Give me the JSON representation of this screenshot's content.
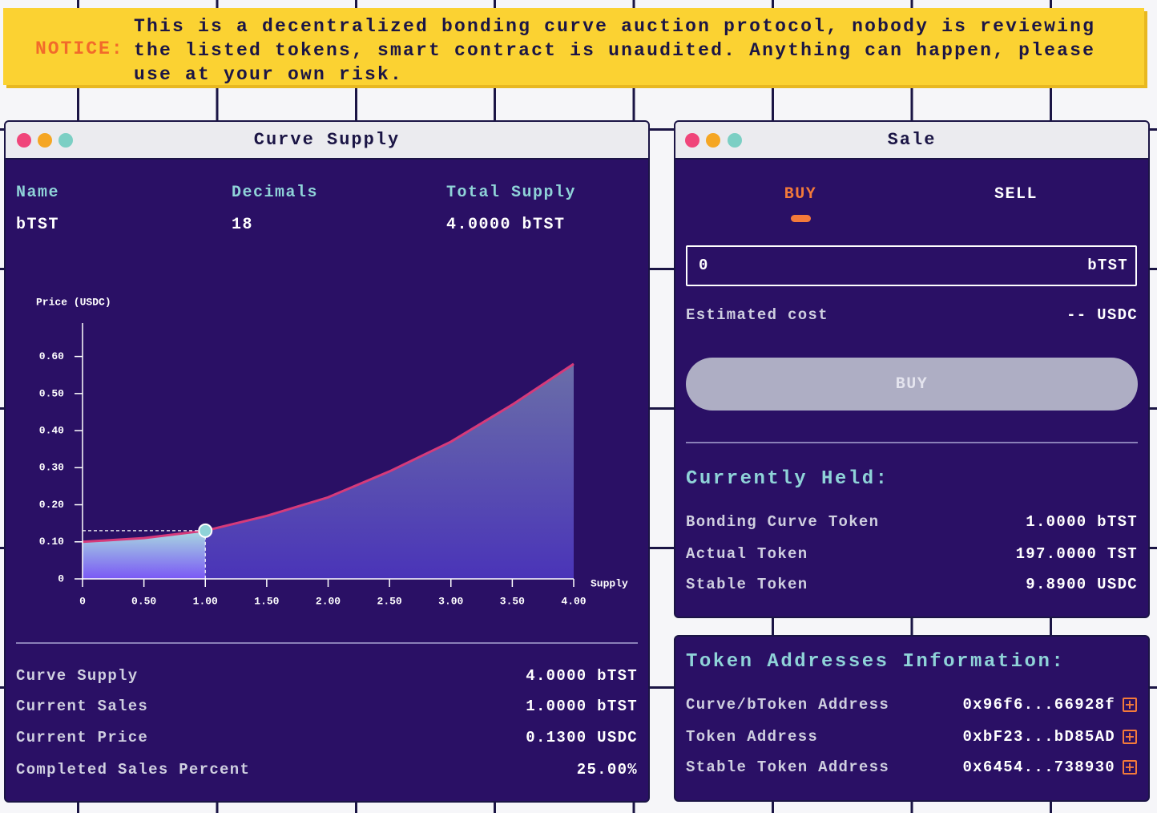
{
  "notice": {
    "label": "NOTICE:",
    "text": "This is a decentralized bonding curve auction protocol, nobody is reviewing the listed tokens, smart contract is unaudited. Anything can happen, please use at your own risk."
  },
  "curve_panel": {
    "title": "Curve Supply",
    "headers": [
      "Name",
      "Decimals",
      "Total Supply"
    ],
    "values": [
      "bTST",
      "18",
      "4.0000 bTST"
    ],
    "stats": [
      {
        "label": "Curve Supply",
        "value": "4.0000 bTST"
      },
      {
        "label": "Current Sales",
        "value": "1.0000 bTST"
      },
      {
        "label": "Current Price",
        "value": "0.1300 USDC"
      },
      {
        "label": "Completed Sales Percent",
        "value": "25.00%"
      }
    ]
  },
  "chart_data": {
    "type": "area",
    "y_label": "Price (USDC)",
    "x_label": "Supply",
    "x": [
      0,
      0.5,
      1,
      1.5,
      2,
      2.5,
      3,
      3.5,
      4
    ],
    "series": [
      {
        "color": "#d63a7a",
        "values": [
          0.1,
          0.11,
          0.13,
          0.17,
          0.22,
          0.29,
          0.37,
          0.47,
          0.58
        ]
      }
    ],
    "marker": {
      "x": 1,
      "y": 0.13
    },
    "xlim": [
      0,
      4
    ],
    "ylim": [
      0,
      0.69
    ],
    "xticks": [
      0,
      {
        "value": 0.5,
        "label": "0.50"
      },
      {
        "value": 1,
        "label": "1.00"
      },
      {
        "value": 1.5,
        "label": "1.50"
      },
      {
        "value": 2,
        "label": "2.00"
      },
      {
        "value": 2.5,
        "label": "2.50"
      },
      {
        "value": 3,
        "label": "3.00"
      },
      {
        "value": 3.5,
        "label": "3.50"
      },
      {
        "value": 4,
        "label": "4.00"
      }
    ],
    "yticks": [
      0,
      {
        "value": 0.1,
        "label": "0.10"
      },
      {
        "value": 0.2,
        "label": "0.20"
      },
      {
        "value": 0.3,
        "label": "0.30"
      },
      {
        "value": 0.4,
        "label": "0.40"
      },
      {
        "value": 0.5,
        "label": "0.50"
      },
      {
        "value": 0.6,
        "label": "0.60"
      }
    ]
  },
  "sale_panel": {
    "title": "Sale",
    "tabs": [
      "BUY",
      "SELL"
    ],
    "input": {
      "value": "0",
      "unit": "bTST"
    },
    "estimate": {
      "label": "Estimated cost",
      "value": "-- USDC"
    },
    "button": "BUY",
    "held": {
      "title": "Currently Held:",
      "rows": [
        {
          "label": "Bonding Curve Token",
          "value": "1.0000 bTST"
        },
        {
          "label": "Actual Token",
          "value": "197.0000 TST"
        },
        {
          "label": "Stable Token",
          "value": "9.8900 USDC"
        }
      ]
    }
  },
  "addresses": {
    "title": "Token Addresses Information:",
    "rows": [
      {
        "label": "Curve/bToken Address",
        "value": "0x96f6...66928f"
      },
      {
        "label": "Token Address",
        "value": "0xbF23...bD85AD"
      },
      {
        "label": "Stable Token Address",
        "value": "0x6454...738930"
      }
    ]
  }
}
